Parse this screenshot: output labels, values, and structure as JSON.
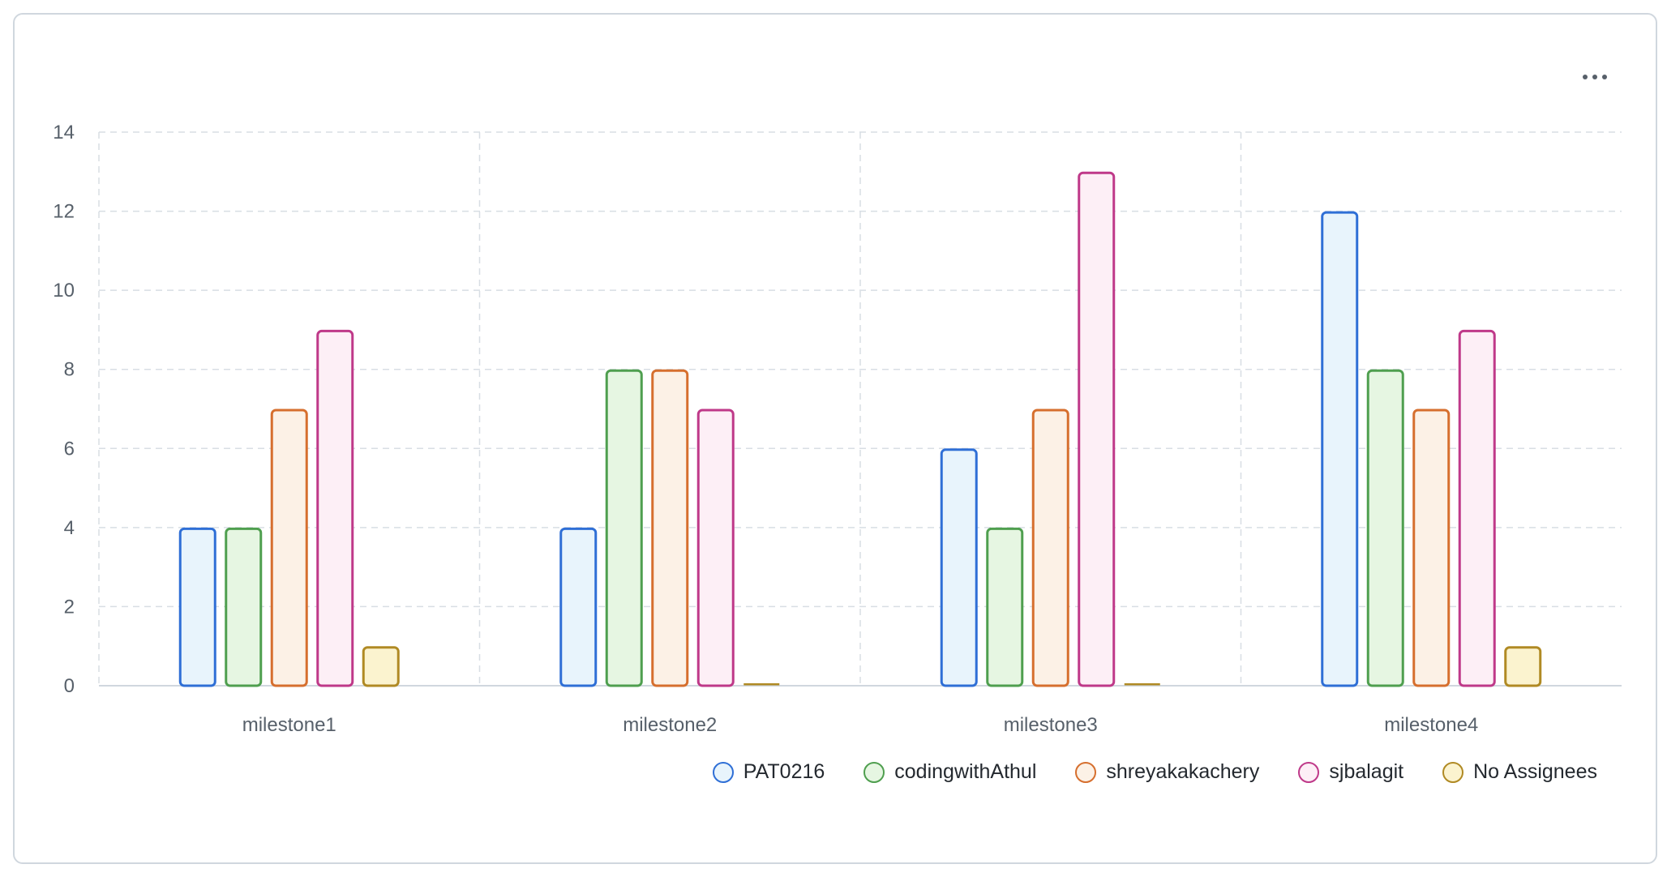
{
  "chart_data": {
    "type": "bar",
    "categories": [
      "milestone1",
      "milestone2",
      "milestone3",
      "milestone4"
    ],
    "series": [
      {
        "name": "PAT0216",
        "values": [
          4,
          4,
          6,
          12
        ],
        "stroke": "#2f6fd6",
        "fill": "#e8f4fc"
      },
      {
        "name": "codingwithAthul",
        "values": [
          4,
          8,
          4,
          8
        ],
        "stroke": "#4f9f4f",
        "fill": "#e6f6e2"
      },
      {
        "name": "shreyakakachery",
        "values": [
          7,
          8,
          7,
          7
        ],
        "stroke": "#d66f2e",
        "fill": "#fcf1e6"
      },
      {
        "name": "sjbalagit",
        "values": [
          9,
          7,
          13,
          9
        ],
        "stroke": "#bf3989",
        "fill": "#fdeff6"
      },
      {
        "name": "No Assignees",
        "values": [
          1,
          0,
          0,
          1
        ],
        "stroke": "#b08a24",
        "fill": "#fbf3cf"
      }
    ],
    "ylim": [
      0,
      14
    ],
    "yticks": [
      "0",
      "2",
      "4",
      "6",
      "8",
      "10",
      "12",
      "14"
    ],
    "grid": true,
    "legend_position": "bottom-right"
  },
  "menu": {
    "icon": "kebab-horizontal-icon"
  }
}
